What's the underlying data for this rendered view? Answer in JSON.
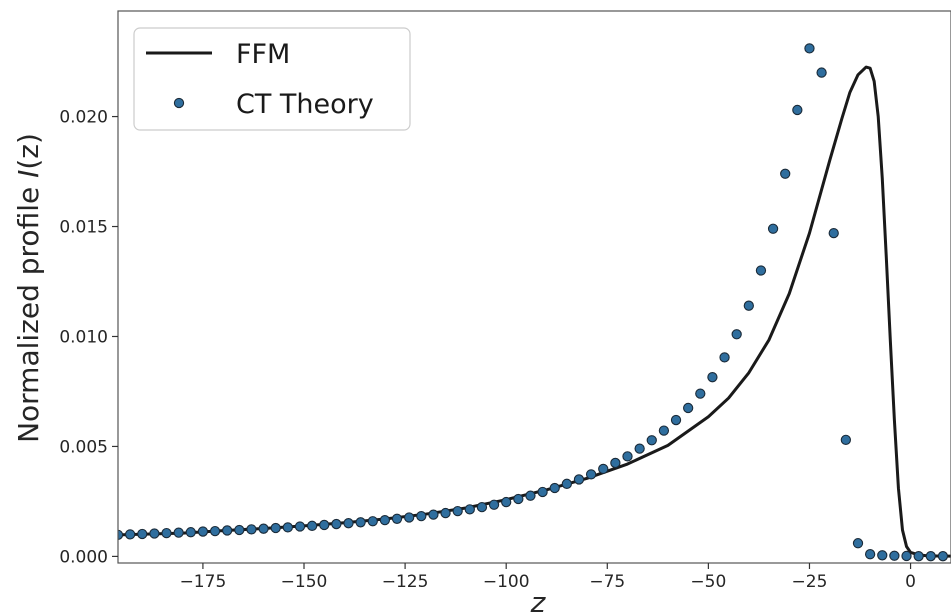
{
  "chart_data": {
    "type": "line",
    "xlabel": "z",
    "ylabel": "Normalized profile I(z)",
    "xlim": [
      -196,
      10
    ],
    "ylim": [
      -0.0003,
      0.0248
    ],
    "xticks": [
      -175,
      -150,
      -125,
      -100,
      -75,
      -50,
      -25,
      0
    ],
    "xtick_labels": [
      "−175",
      "−150",
      "−125",
      "−100",
      "−75",
      "−50",
      "−25",
      "0"
    ],
    "yticks": [
      0.0,
      0.005,
      0.01,
      0.015,
      0.02
    ],
    "ytick_labels": [
      "0.000",
      "0.005",
      "0.010",
      "0.015",
      "0.020"
    ],
    "legend": {
      "position": "upper-left"
    },
    "series": [
      {
        "name": "FFM",
        "kind": "line",
        "color": "#1a1a1a",
        "x": [
          -196,
          -180,
          -170,
          -160,
          -150,
          -140,
          -130,
          -120,
          -110,
          -100,
          -90,
          -80,
          -70,
          -60,
          -50,
          -45,
          -40,
          -35,
          -30,
          -25,
          -20,
          -17,
          -15,
          -13,
          -11,
          -10,
          -9,
          -8,
          -7,
          -6,
          -5,
          -4,
          -3,
          -2,
          -1,
          0,
          2,
          4,
          6,
          10
        ],
        "y": [
          0.00098,
          0.00106,
          0.00117,
          0.00127,
          0.00139,
          0.00153,
          0.0017,
          0.00192,
          0.0022,
          0.00258,
          0.00303,
          0.00355,
          0.0042,
          0.00505,
          0.00635,
          0.0072,
          0.00835,
          0.00985,
          0.01195,
          0.0147,
          0.018,
          0.0199,
          0.0211,
          0.0219,
          0.02225,
          0.0222,
          0.0216,
          0.02,
          0.0172,
          0.0136,
          0.0098,
          0.0062,
          0.0031,
          0.0012,
          0.00045,
          0.00018,
          7e-05,
          3e-05,
          2e-05,
          1e-05
        ]
      },
      {
        "name": "CT Theory",
        "kind": "scatter",
        "color": "#2f6e9e",
        "edge_color": "#1a2a38",
        "x": [
          -196,
          -193,
          -190,
          -187,
          -184,
          -181,
          -178,
          -175,
          -172,
          -169,
          -166,
          -163,
          -160,
          -157,
          -154,
          -151,
          -148,
          -145,
          -142,
          -139,
          -136,
          -133,
          -130,
          -127,
          -124,
          -121,
          -118,
          -115,
          -112,
          -109,
          -106,
          -103,
          -100,
          -97,
          -94,
          -91,
          -88,
          -85,
          -82,
          -79,
          -76,
          -73,
          -70,
          -67,
          -64,
          -61,
          -58,
          -55,
          -52,
          -49,
          -46,
          -43,
          -40,
          -37,
          -34,
          -31,
          -28,
          -25,
          -22,
          -19,
          -16,
          -13,
          -10,
          -7,
          -4,
          -1,
          2,
          5,
          8
        ],
        "y": [
          0.00098,
          0.001,
          0.00102,
          0.00104,
          0.00106,
          0.00108,
          0.0011,
          0.00113,
          0.00115,
          0.00118,
          0.0012,
          0.00123,
          0.00126,
          0.00129,
          0.00132,
          0.00136,
          0.00139,
          0.00143,
          0.00147,
          0.00151,
          0.00155,
          0.0016,
          0.00165,
          0.00171,
          0.00177,
          0.00183,
          0.0019,
          0.00197,
          0.00206,
          0.00214,
          0.00224,
          0.00235,
          0.00247,
          0.00261,
          0.00276,
          0.00293,
          0.00311,
          0.0033,
          0.0035,
          0.00373,
          0.00398,
          0.00425,
          0.00455,
          0.0049,
          0.00528,
          0.00572,
          0.0062,
          0.00675,
          0.0074,
          0.00815,
          0.00905,
          0.0101,
          0.0114,
          0.013,
          0.0149,
          0.0174,
          0.0203,
          0.0231,
          0.022,
          0.0147,
          0.0053,
          0.0006,
          0.0001,
          5e-05,
          3e-05,
          2e-05,
          1e-05,
          1e-05,
          1e-05
        ]
      }
    ]
  }
}
